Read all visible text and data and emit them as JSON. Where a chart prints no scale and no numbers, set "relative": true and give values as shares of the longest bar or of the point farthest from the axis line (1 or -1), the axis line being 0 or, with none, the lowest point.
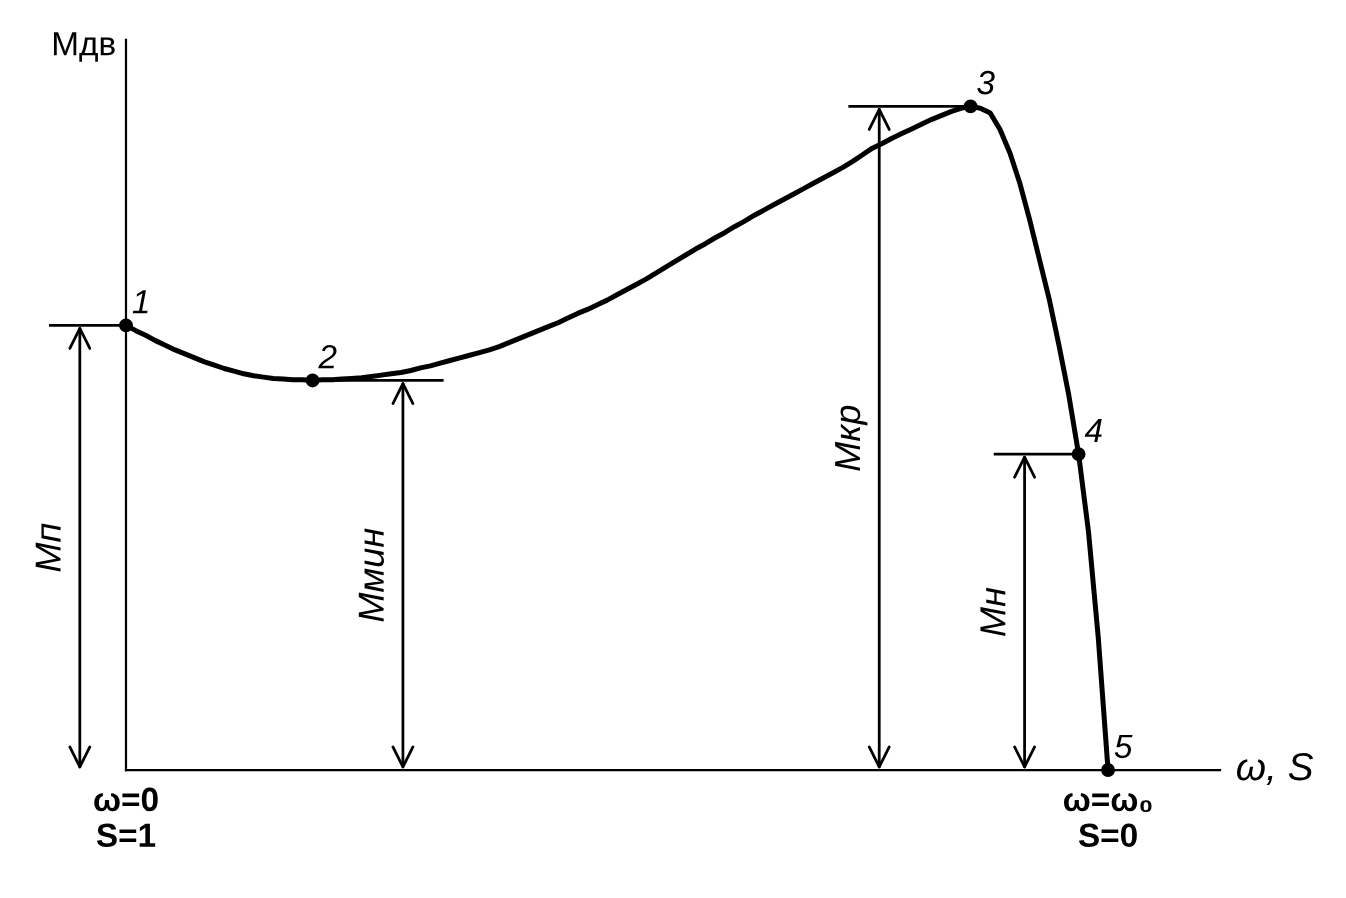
{
  "chart_data": {
    "type": "line",
    "relative": true,
    "ylabel": "Мдв",
    "xlabel": "ω, S",
    "categories": [
      "ω=0\nS=1",
      null,
      null,
      null,
      null,
      null,
      null,
      null,
      null,
      null,
      null,
      null,
      null,
      null,
      null,
      null,
      null,
      null,
      null,
      null,
      null,
      null,
      null,
      null,
      null,
      null,
      null,
      null,
      null,
      null,
      null,
      null,
      null,
      null,
      null,
      null,
      null,
      null,
      null,
      null,
      null,
      null,
      null,
      null,
      null,
      null,
      null,
      null,
      null,
      null,
      null,
      null,
      null,
      null,
      null,
      null,
      null,
      null,
      null,
      null,
      null,
      null,
      null,
      null,
      null,
      null,
      null,
      null,
      null,
      null,
      null,
      null,
      null,
      null,
      null,
      null,
      null,
      null,
      null,
      null,
      null,
      null,
      null,
      null,
      null,
      null,
      null,
      null,
      null,
      null,
      null,
      null,
      null,
      null,
      null,
      null,
      null,
      null,
      null,
      null,
      "ω=ω₀\nS=0"
    ],
    "series": [
      {
        "color": "#000000",
        "values": [
          0.67,
          0.662,
          0.655,
          0.647,
          0.64,
          0.633,
          0.627,
          0.621,
          0.615,
          0.61,
          0.605,
          0.601,
          0.597,
          0.594,
          0.592,
          0.59,
          0.589,
          0.588,
          0.588,
          0.587,
          0.588,
          0.588,
          0.589,
          0.59,
          0.591,
          0.593,
          0.595,
          0.597,
          0.599,
          0.602,
          0.606,
          0.609,
          0.613,
          0.617,
          0.621,
          0.625,
          0.629,
          0.633,
          0.638,
          0.644,
          0.65,
          0.656,
          0.662,
          0.668,
          0.674,
          0.681,
          0.688,
          0.694,
          0.701,
          0.708,
          0.716,
          0.724,
          0.732,
          0.74,
          0.749,
          0.758,
          0.767,
          0.776,
          0.785,
          0.793,
          0.802,
          0.81,
          0.819,
          0.827,
          0.836,
          0.844,
          0.852,
          0.86,
          0.868,
          0.876,
          0.884,
          0.892,
          0.9,
          0.908,
          0.917,
          0.927,
          0.937,
          0.944,
          0.952,
          0.959,
          0.966,
          0.973,
          0.98,
          0.986,
          0.992,
          0.997,
          1,
          0.997,
          0.99,
          0.965,
          0.93,
          0.885,
          0.83,
          0.77,
          0.71,
          0.64,
          0.565,
          0.476,
          0.36,
          0.2,
          0
        ]
      }
    ],
    "annotations": [
      {
        "text": "1",
        "y": 0.67
      },
      {
        "text": "2",
        "y": 0.587
      },
      {
        "text": "3",
        "y": 1
      },
      {
        "text": "4",
        "y": 0.476
      },
      {
        "text": "5",
        "x": "ω=ω₀\nS=0",
        "y": 0
      },
      "Мп",
      "Ммин",
      "Мкр",
      "Мн"
    ],
    "grid": false,
    "legend": false
  }
}
